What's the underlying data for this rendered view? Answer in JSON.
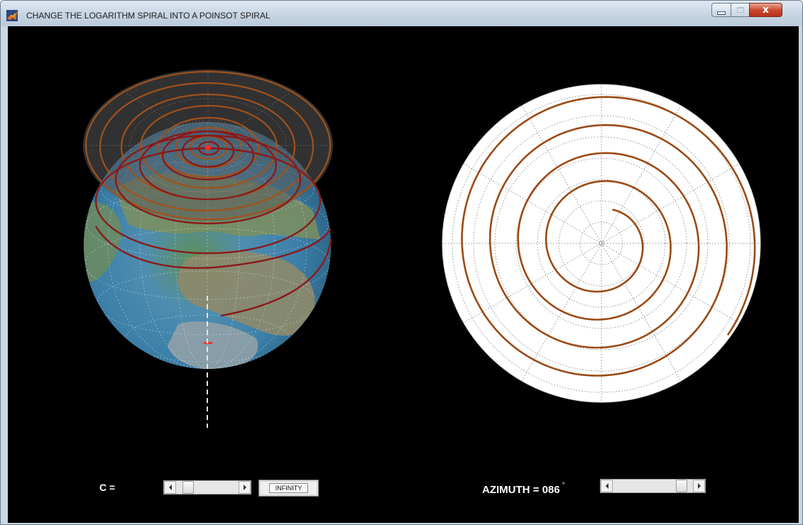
{
  "window": {
    "title": "CHANGE THE LOGARITHM SPIRAL INTO A POINSOT SPIRAL",
    "close_glyph": "x"
  },
  "controls": {
    "c_label": "C =",
    "c_button": "INFINITY",
    "c_slider_position": 0.12,
    "azimuth_label": "AZIMUTH = 086",
    "azimuth_degree_symbol": "°",
    "azimuth_slider_position": 0.92
  },
  "colors": {
    "spiral_left": "#8a1a1a",
    "spiral_left_upper": "#a0521a",
    "spiral_right": "#9a4a14",
    "marker": "#ff2a2a"
  }
}
